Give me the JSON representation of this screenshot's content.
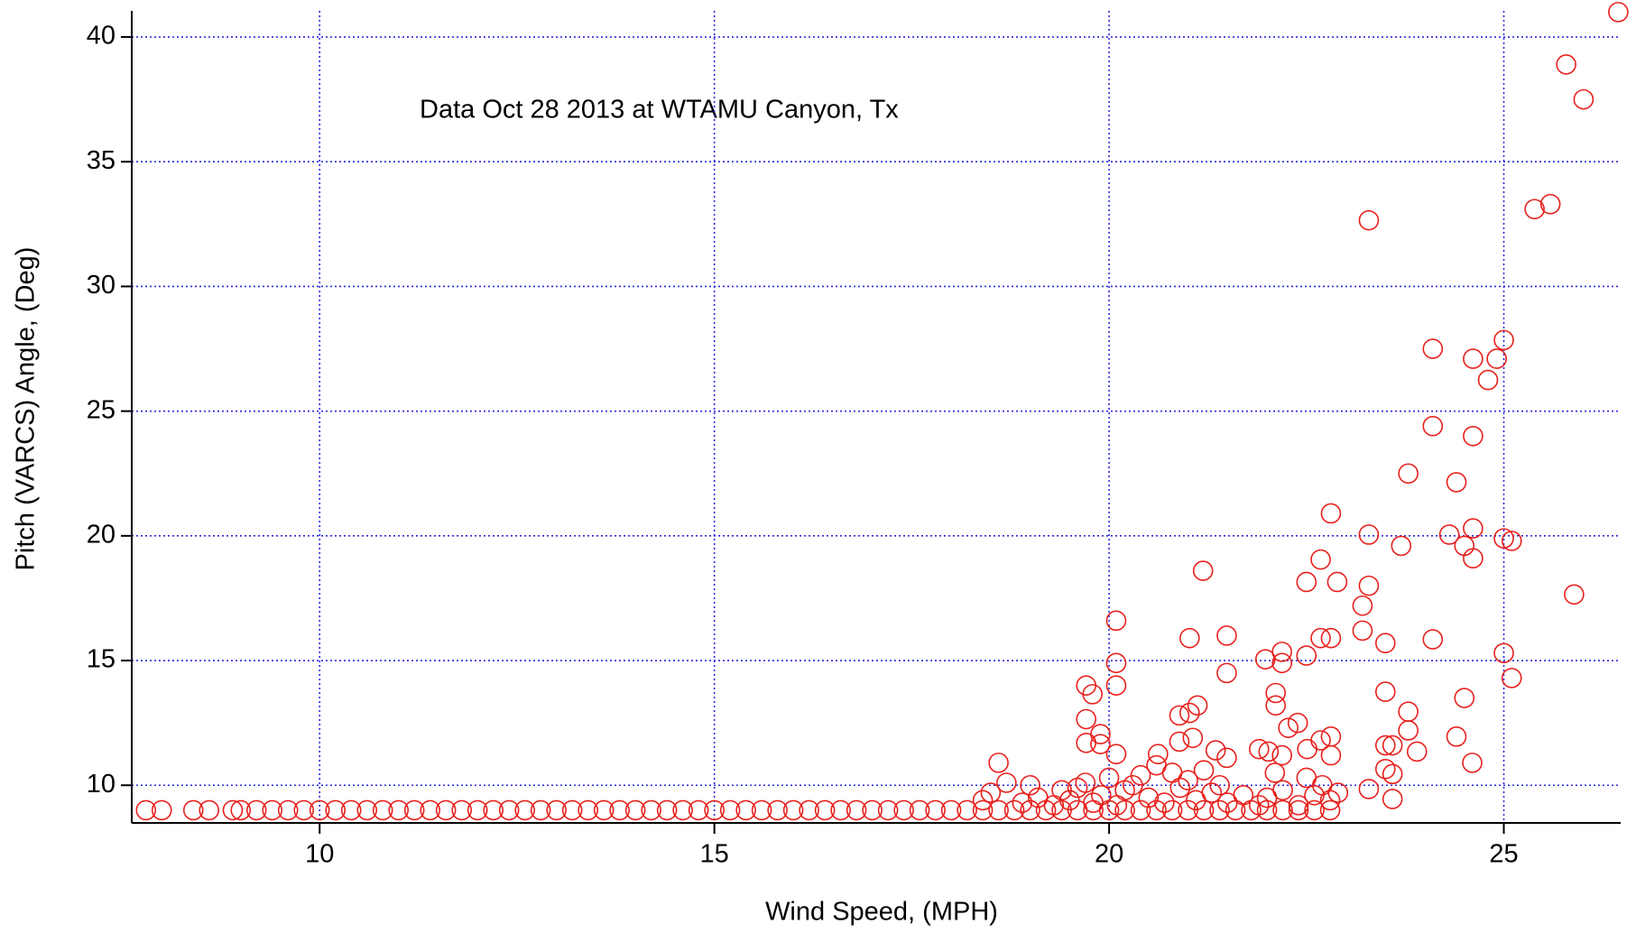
{
  "chart_data": {
    "type": "scatter",
    "annotation": "Data Oct 28 2013 at WTAMU Canyon, Tx",
    "x_label": "Wind Speed, (MPH)",
    "y_label": "Pitch (VARCS) Angle, (Deg)",
    "color": "#e8201c",
    "grid": true,
    "xlim": [
      7.62,
      26.48
    ],
    "ylim": [
      8.49,
      41.05
    ],
    "xticks": [
      10,
      15,
      20,
      25
    ],
    "yticks": [
      10,
      15,
      20,
      25,
      30,
      35,
      40
    ],
    "x": [
      7.8,
      8.0,
      8.4,
      8.6,
      8.9,
      9.0,
      9.2,
      9.4,
      9.6,
      9.8,
      10.0,
      10.2,
      10.4,
      10.6,
      10.8,
      11.0,
      11.2,
      11.4,
      11.6,
      11.8,
      12.0,
      12.2,
      12.4,
      12.6,
      12.8,
      13.0,
      13.2,
      13.4,
      13.6,
      13.8,
      14.0,
      14.2,
      14.4,
      14.6,
      14.8,
      15.0,
      15.2,
      15.4,
      15.6,
      15.8,
      16.0,
      16.2,
      16.4,
      16.6,
      16.8,
      17.0,
      17.2,
      17.4,
      17.6,
      17.8,
      18.0,
      18.2,
      18.4,
      18.6,
      18.8,
      19.0,
      19.2,
      19.4,
      19.6,
      19.8,
      20.0,
      20.2,
      20.4,
      20.6,
      20.8,
      21.0,
      21.2,
      21.4,
      21.6,
      21.8,
      22.0,
      22.2,
      22.4,
      22.6,
      22.8,
      18.4,
      18.5,
      18.7,
      18.9,
      19.0,
      19.1,
      19.3,
      19.4,
      19.5,
      19.6,
      19.7,
      19.8,
      19.9,
      20.0,
      20.1,
      20.2,
      20.3,
      20.4,
      20.5,
      20.6,
      20.7,
      20.8,
      20.9,
      21.0,
      21.1,
      21.2,
      21.3,
      21.4,
      21.5,
      21.7,
      21.9,
      22.0,
      22.1,
      22.2,
      22.4,
      22.5,
      22.6,
      22.7,
      22.8,
      22.9,
      26.45,
      25.79,
      26.01,
      23.29,
      25.39,
      25.59,
      24.1,
      25.0,
      24.91,
      24.61,
      24.8,
      24.1,
      24.61,
      23.79,
      24.4,
      22.81,
      23.29,
      23.7,
      24.31,
      24.5,
      24.61,
      24.61,
      25.0,
      25.1,
      25.89,
      21.19,
      22.68,
      22.5,
      22.89,
      23.29,
      23.21,
      23.21,
      23.5,
      24.1,
      22.68,
      22.81,
      20.09,
      21.02,
      21.49,
      21.49,
      20.09,
      20.09,
      21.98,
      22.19,
      22.19,
      22.5,
      25.0,
      25.1,
      19.71,
      19.79,
      22.11,
      22.11,
      23.5,
      23.79,
      24.5,
      19.71,
      20.89,
      21.02,
      21.12,
      22.27,
      22.39,
      23.79,
      24.4,
      23.9,
      23.5,
      23.59,
      19.71,
      19.89,
      19.89,
      20.09,
      20.62,
      20.89,
      21.06,
      21.35,
      21.49,
      21.9,
      22.02,
      22.19,
      22.51,
      22.68,
      22.81,
      22.81,
      24.6,
      18.6,
      23.5,
      23.59,
      23.29,
      23.59
    ],
    "values": [
      9,
      9,
      9,
      9,
      9,
      9,
      9,
      9,
      9,
      9,
      9,
      9,
      9,
      9,
      9,
      9,
      9,
      9,
      9,
      9,
      9,
      9,
      9,
      9,
      9,
      9,
      9,
      9,
      9,
      9,
      9,
      9,
      9,
      9,
      9,
      9,
      9,
      9,
      9,
      9,
      9,
      9,
      9,
      9,
      9,
      9,
      9,
      9,
      9,
      9,
      9,
      9,
      9,
      9,
      9,
      9,
      9,
      9,
      9,
      9,
      9,
      9,
      9,
      9,
      9,
      9,
      9,
      9,
      9,
      9,
      9,
      9,
      9,
      9,
      9,
      9.4,
      9.7,
      10.1,
      9.3,
      10.0,
      9.5,
      9.2,
      9.8,
      9.4,
      9.9,
      10.1,
      9.3,
      9.6,
      10.3,
      9.2,
      9.8,
      10.0,
      10.4,
      9.5,
      10.8,
      9.3,
      10.5,
      9.9,
      10.2,
      9.4,
      10.6,
      9.7,
      10.0,
      9.3,
      9.6,
      9.2,
      9.5,
      10.5,
      9.8,
      9.2,
      10.3,
      9.6,
      10.0,
      9.4,
      9.7,
      41.0,
      38.9,
      37.5,
      32.65,
      33.1,
      33.3,
      27.5,
      27.85,
      27.1,
      27.1,
      26.25,
      24.4,
      24.0,
      22.5,
      22.15,
      20.9,
      20.05,
      19.6,
      20.05,
      19.6,
      20.3,
      19.1,
      19.9,
      19.8,
      17.65,
      18.6,
      19.05,
      18.15,
      18.15,
      18.0,
      17.2,
      16.2,
      15.7,
      15.85,
      15.9,
      15.9,
      16.6,
      15.9,
      16.0,
      14.5,
      14.9,
      14.0,
      15.05,
      15.35,
      14.9,
      15.2,
      15.3,
      14.3,
      14.0,
      13.65,
      13.7,
      13.2,
      13.75,
      12.95,
      13.5,
      12.65,
      12.8,
      12.9,
      13.2,
      12.3,
      12.5,
      12.2,
      11.95,
      11.35,
      11.6,
      11.6,
      11.7,
      11.65,
      12.05,
      11.25,
      11.25,
      11.75,
      11.9,
      11.4,
      11.1,
      11.45,
      11.35,
      11.2,
      11.45,
      11.8,
      11.95,
      11.2,
      10.9,
      10.9,
      10.65,
      10.45,
      9.85,
      9.45
    ]
  }
}
